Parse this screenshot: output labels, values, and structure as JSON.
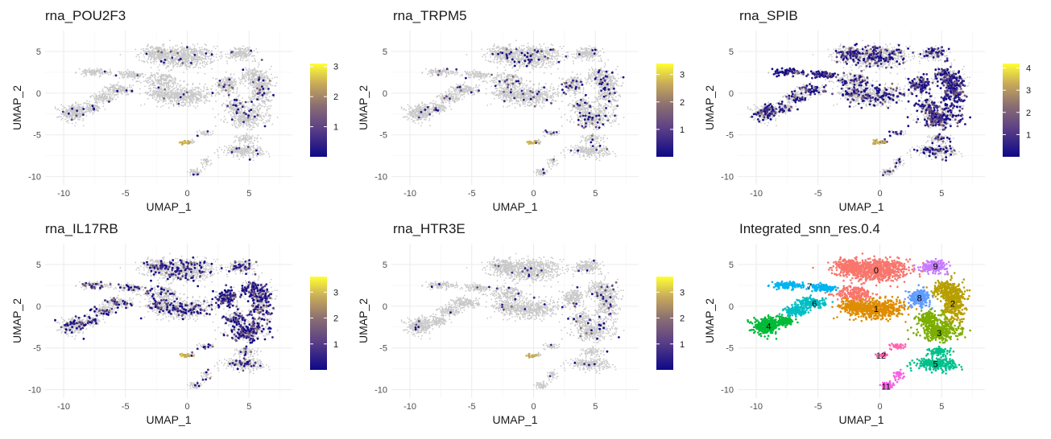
{
  "chart_data": [
    {
      "type": "scatter",
      "title": "rna_POU2F3",
      "xlabel": "UMAP_1",
      "ylabel": "UMAP_2",
      "xlim": [
        -11.5,
        8.5
      ],
      "ylim": [
        -11,
        7.5
      ],
      "xticks": [
        "-10",
        "-5",
        "0",
        "5"
      ],
      "yticks": [
        "5",
        "0",
        "-5",
        "-10"
      ],
      "colorbar": {
        "ticks": [
          "3",
          "2",
          "1"
        ],
        "min": 0,
        "max": 3.1,
        "tick_values": [
          3,
          2,
          1
        ]
      },
      "expression_density": 0.02,
      "grid": true,
      "legend": "right"
    },
    {
      "type": "scatter",
      "title": "rna_TRPM5",
      "xlabel": "UMAP_1",
      "ylabel": "UMAP_2",
      "xlim": [
        -11.5,
        8.5
      ],
      "ylim": [
        -11,
        7.5
      ],
      "xticks": [
        "-10",
        "-5",
        "0",
        "5"
      ],
      "yticks": [
        "5",
        "0",
        "-5",
        "-10"
      ],
      "colorbar": {
        "ticks": [
          "3",
          "2",
          "1"
        ],
        "min": 0,
        "max": 3.4,
        "tick_values": [
          3,
          2,
          1
        ]
      },
      "expression_density": 0.035,
      "grid": true,
      "legend": "right"
    },
    {
      "type": "scatter",
      "title": "rna_SPIB",
      "xlabel": "UMAP_1",
      "ylabel": "UMAP_2",
      "xlim": [
        -11.5,
        8.5
      ],
      "ylim": [
        -11,
        7.5
      ],
      "xticks": [
        "-10",
        "-5",
        "0",
        "5"
      ],
      "yticks": [
        "5",
        "0",
        "-5",
        "-10"
      ],
      "colorbar": {
        "ticks": [
          "4",
          "3",
          "2",
          "1"
        ],
        "min": 0,
        "max": 4.2,
        "tick_values": [
          4,
          3,
          2,
          1
        ]
      },
      "expression_density": 0.2,
      "grid": true,
      "legend": "right"
    },
    {
      "type": "scatter",
      "title": "rna_IL17RB",
      "xlabel": "UMAP_1",
      "ylabel": "UMAP_2",
      "xlim": [
        -11.5,
        8.5
      ],
      "ylim": [
        -11,
        7.5
      ],
      "xticks": [
        "-10",
        "-5",
        "0",
        "5"
      ],
      "yticks": [
        "5",
        "0",
        "-5",
        "-10"
      ],
      "colorbar": {
        "ticks": [
          "3",
          "2",
          "1"
        ],
        "min": 0,
        "max": 3.6,
        "tick_values": [
          3,
          2,
          1
        ]
      },
      "expression_density": 0.15,
      "grid": true,
      "legend": "right"
    },
    {
      "type": "scatter",
      "title": "rna_HTR3E",
      "xlabel": "UMAP_1",
      "ylabel": "UMAP_2",
      "xlim": [
        -11.5,
        8.5
      ],
      "ylim": [
        -11,
        7.5
      ],
      "xticks": [
        "-10",
        "-5",
        "0",
        "5"
      ],
      "yticks": [
        "5",
        "0",
        "-5",
        "-10"
      ],
      "colorbar": {
        "ticks": [
          "3",
          "2",
          "1"
        ],
        "min": 0,
        "max": 3.6,
        "tick_values": [
          3,
          2,
          1
        ]
      },
      "expression_density": 0.015,
      "grid": true,
      "legend": "right"
    },
    {
      "type": "scatter",
      "title": "Integrated_snn_res.0.4",
      "xlabel": "UMAP_1",
      "ylabel": "UMAP_2",
      "xlim": [
        -11.5,
        8.5
      ],
      "ylim": [
        -11,
        7.5
      ],
      "xticks": [
        "-10",
        "-5",
        "0",
        "5"
      ],
      "yticks": [
        "5",
        "0",
        "-5",
        "-10"
      ],
      "grid": true,
      "clusters": [
        {
          "label": "0",
          "x": -0.2,
          "y": 4.2,
          "color": "#F8766D"
        },
        {
          "label": "1",
          "x": -0.1,
          "y": -0.3,
          "color": "#DE8C00"
        },
        {
          "label": "2",
          "x": 6.2,
          "y": 0.3,
          "color": "#B79F00"
        },
        {
          "label": "3",
          "x": 4.8,
          "y": -3.2,
          "color": "#7CAE00"
        },
        {
          "label": "4",
          "x": -9.2,
          "y": -2.4,
          "color": "#00BA38"
        },
        {
          "label": "5",
          "x": 4.5,
          "y": -6.9,
          "color": "#00C08B"
        },
        {
          "label": "6",
          "x": -5.3,
          "y": 0.3,
          "color": "#00BFC4"
        },
        {
          "label": "7",
          "x": -5.7,
          "y": 2.5,
          "color": "#00B4F0"
        },
        {
          "label": "8",
          "x": 3.2,
          "y": 1.0,
          "color": "#619CFF"
        },
        {
          "label": "9",
          "x": 4.2,
          "y": 5.0,
          "color": "#C77CFF"
        },
        {
          "label": "11",
          "x": 1.0,
          "y": -9.6,
          "color": "#F564E3"
        },
        {
          "label": "12",
          "x": 0.4,
          "y": -5.8,
          "color": "#FF64B0"
        }
      ],
      "cluster_label_positions": [
        {
          "label": "0",
          "x": -0.3,
          "y": 4.3
        },
        {
          "label": "1",
          "x": -0.3,
          "y": -0.3
        },
        {
          "label": "2",
          "x": 5.9,
          "y": 0.3
        },
        {
          "label": "3",
          "x": 4.8,
          "y": -3.2
        },
        {
          "label": "4",
          "x": -9.0,
          "y": -2.4
        },
        {
          "label": "5",
          "x": 4.5,
          "y": -6.9
        },
        {
          "label": "6",
          "x": -5.3,
          "y": 0.3
        },
        {
          "label": "7",
          "x": -5.7,
          "y": 2.4
        },
        {
          "label": "8",
          "x": 3.2,
          "y": 1.0
        },
        {
          "label": "9",
          "x": 4.5,
          "y": 4.8
        },
        {
          "label": "11",
          "x": 0.5,
          "y": -9.6
        },
        {
          "label": "12",
          "x": 0.1,
          "y": -5.9
        }
      ]
    }
  ],
  "colors": {
    "background_points": "#c8c8c8",
    "gradient_low": "#0d0887",
    "gradient_mid": "#7f5e8a",
    "gradient_high": "#ffff33",
    "grid": "#ebebeb"
  }
}
